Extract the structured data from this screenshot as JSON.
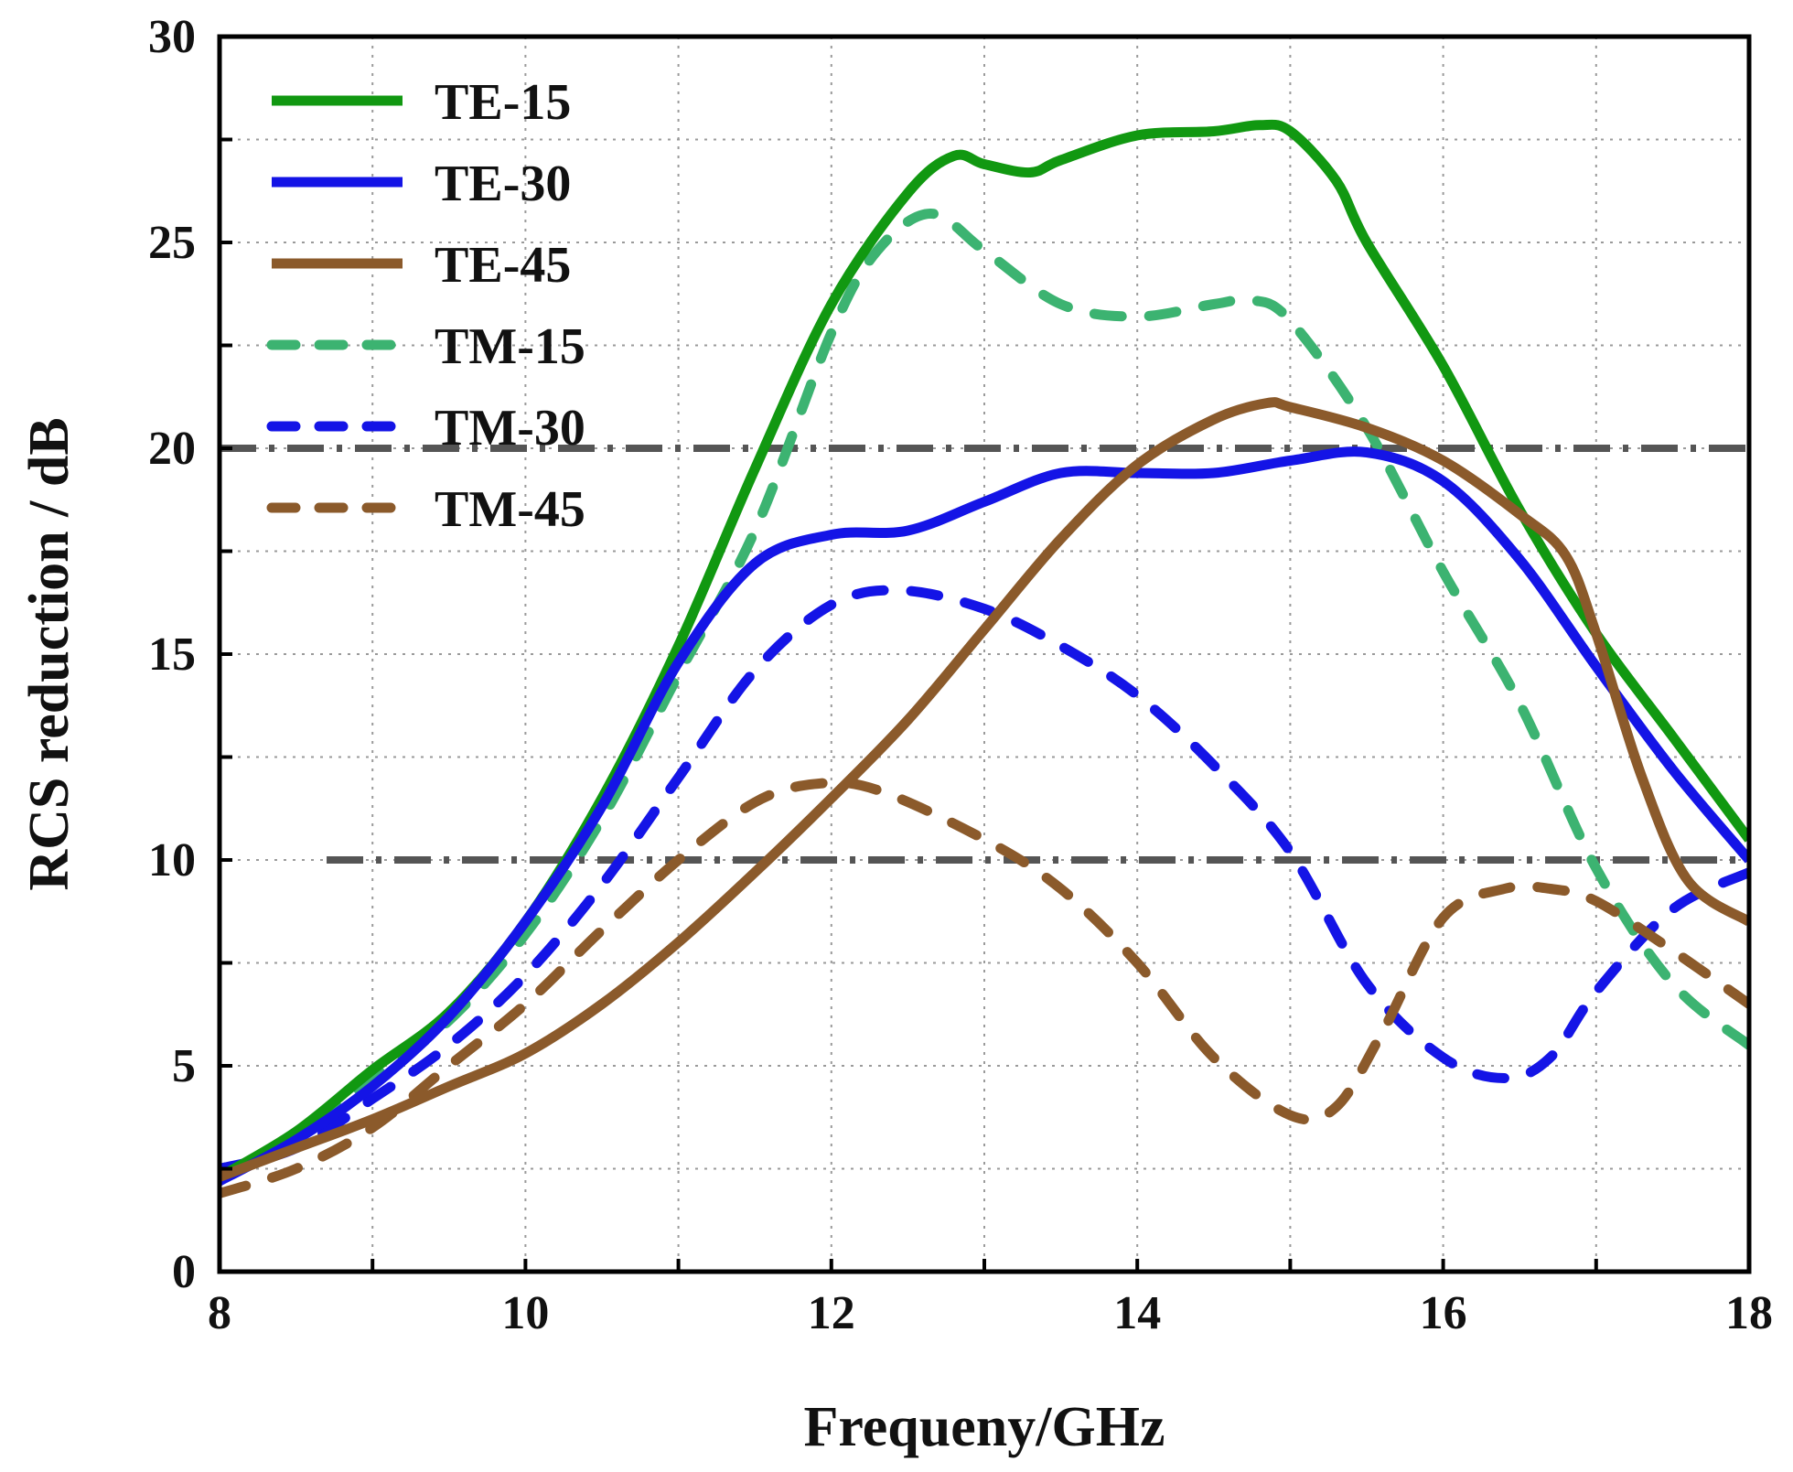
{
  "chart_data": {
    "type": "line",
    "title": "",
    "xlabel": "Frequeny/GHz",
    "ylabel": "RCS reduction / dB",
    "xlim": [
      8,
      18
    ],
    "ylim": [
      0,
      30
    ],
    "xticks": [
      8,
      10,
      12,
      14,
      16,
      18
    ],
    "yticks": [
      0,
      5,
      10,
      15,
      20,
      25,
      30
    ],
    "x_tick_labels": [
      "8",
      "10",
      "12",
      "14",
      "16",
      "18"
    ],
    "y_tick_labels": [
      "0",
      "5",
      "10",
      "15",
      "20",
      "25",
      "30"
    ],
    "grid": true,
    "legend_position": "top-left",
    "reference_lines": [
      {
        "y": 20,
        "style": "dash-dot",
        "color": "#555555",
        "x_start": 8,
        "x_end": 18
      },
      {
        "y": 10,
        "style": "dash-dot",
        "color": "#555555",
        "x_start": 8.7,
        "x_end": 18
      }
    ],
    "series": [
      {
        "name": "TE-15",
        "color": "#119811",
        "dash": "solid",
        "x": [
          8,
          8.5,
          9,
          9.5,
          10,
          10.5,
          11,
          11.5,
          12,
          12.5,
          12.8,
          13,
          13.3,
          13.5,
          14,
          14.5,
          14.8,
          15,
          15.3,
          15.5,
          16,
          16.5,
          17,
          17.5,
          18
        ],
        "y": [
          2.3,
          3.4,
          4.9,
          6.3,
          8.5,
          11.5,
          15.2,
          19.5,
          23.5,
          26.2,
          27.1,
          26.9,
          26.7,
          27.0,
          27.6,
          27.7,
          27.85,
          27.7,
          26.5,
          25.0,
          22.0,
          18.5,
          15.5,
          13.0,
          10.5
        ]
      },
      {
        "name": "TE-30",
        "color": "#1414e6",
        "dash": "solid",
        "x": [
          8,
          8.5,
          9,
          9.5,
          10,
          10.5,
          11,
          11.5,
          12,
          12.5,
          13,
          13.5,
          14,
          14.5,
          15,
          15.5,
          16,
          16.5,
          17,
          17.5,
          18
        ],
        "y": [
          2.2,
          3.2,
          4.5,
          6.2,
          8.5,
          11.3,
          14.8,
          17.2,
          17.9,
          18.0,
          18.7,
          19.4,
          19.4,
          19.4,
          19.7,
          19.9,
          19.2,
          17.3,
          14.7,
          12.2,
          10.0
        ]
      },
      {
        "name": "TE-45",
        "color": "#8b5a2b",
        "dash": "solid",
        "x": [
          8,
          8.5,
          9,
          9.5,
          10,
          10.5,
          11,
          11.5,
          12,
          12.5,
          13,
          13.5,
          14,
          14.5,
          14.85,
          15,
          15.5,
          16,
          16.5,
          16.8,
          17,
          17.3,
          17.6,
          18
        ],
        "y": [
          2.3,
          3.0,
          3.7,
          4.5,
          5.3,
          6.5,
          8.0,
          9.7,
          11.5,
          13.4,
          15.6,
          17.8,
          19.6,
          20.7,
          21.1,
          21.0,
          20.5,
          19.7,
          18.4,
          17.4,
          15.5,
          12.0,
          9.5,
          8.5
        ]
      },
      {
        "name": "TM-15",
        "color": "#3cb371",
        "dash": "dash",
        "x": [
          8,
          8.5,
          9,
          9.5,
          10,
          10.5,
          11,
          11.5,
          12,
          12.3,
          12.65,
          13,
          13.5,
          14,
          14.5,
          14.75,
          15,
          15.5,
          16,
          16.5,
          17,
          17.5,
          18
        ],
        "y": [
          2.3,
          3.3,
          4.7,
          6.1,
          8.2,
          11.0,
          14.5,
          18.0,
          22.8,
          24.8,
          25.7,
          24.8,
          23.5,
          23.2,
          23.5,
          23.6,
          23.1,
          20.5,
          17.0,
          13.8,
          9.8,
          7.0,
          5.5
        ]
      },
      {
        "name": "TM-30",
        "color": "#1414e6",
        "dash": "dash",
        "x": [
          8,
          8.5,
          9,
          9.5,
          10,
          10.5,
          11,
          11.5,
          12,
          12.45,
          13,
          13.5,
          14,
          14.5,
          15,
          15.5,
          16,
          16.4,
          16.7,
          17,
          17.5,
          18
        ],
        "y": [
          2.5,
          3.0,
          4.2,
          5.5,
          7.2,
          9.4,
          12.0,
          14.6,
          16.2,
          16.55,
          16.1,
          15.2,
          14.0,
          12.3,
          10.2,
          7.0,
          5.2,
          4.7,
          5.2,
          6.8,
          8.8,
          9.7
        ]
      },
      {
        "name": "TM-45",
        "color": "#8b5a2b",
        "dash": "dash",
        "x": [
          8,
          8.5,
          9,
          9.5,
          10,
          10.5,
          11,
          11.5,
          11.9,
          12.3,
          13,
          13.5,
          14,
          14.5,
          15,
          15.3,
          15.6,
          16,
          16.4,
          16.7,
          17,
          17.5,
          18
        ],
        "y": [
          1.9,
          2.5,
          3.5,
          5.0,
          6.5,
          8.3,
          10.0,
          11.4,
          11.85,
          11.7,
          10.5,
          9.3,
          7.5,
          5.2,
          3.8,
          4.0,
          5.8,
          8.6,
          9.3,
          9.3,
          9.0,
          7.8,
          6.5
        ]
      }
    ]
  }
}
